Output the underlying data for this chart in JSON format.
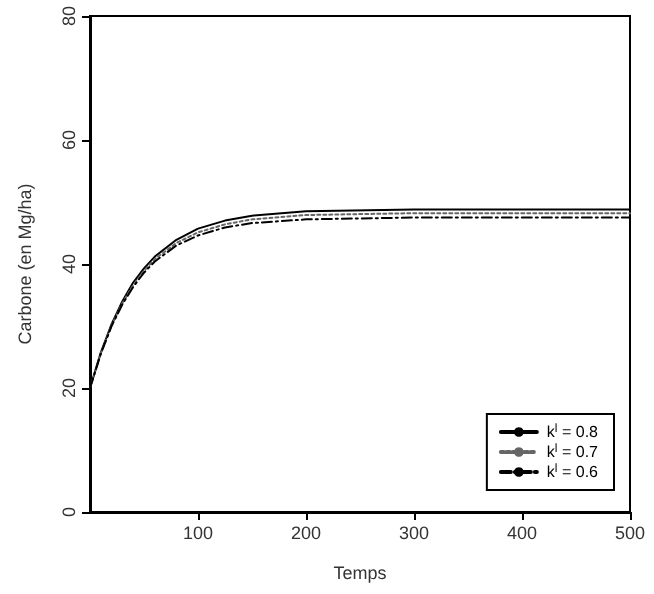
{
  "chart_data": {
    "type": "line",
    "xlabel": "Temps",
    "ylabel": "Carbone (en Mg/ha)",
    "x": [
      0,
      10,
      20,
      30,
      40,
      50,
      60,
      80,
      100,
      125,
      150,
      200,
      300,
      400,
      500
    ],
    "series": [
      {
        "name": "k$^{l}$ = 0.8",
        "color": "#000000",
        "line_style": "solid",
        "values": [
          20,
          25.7,
          30.3,
          34.0,
          37.0,
          39.3,
          41.2,
          43.9,
          45.7,
          47.0,
          47.8,
          48.5,
          48.8,
          48.8,
          48.8
        ]
      },
      {
        "name": "k$^{l}$ = 0.7",
        "color": "#666666",
        "line_style": "dotted",
        "values": [
          20,
          25.6,
          30.1,
          33.7,
          36.6,
          38.9,
          40.8,
          43.4,
          45.1,
          46.4,
          47.2,
          47.9,
          48.2,
          48.2,
          48.2
        ]
      },
      {
        "name": "k$^{l}$ = 0.6",
        "color": "#000000",
        "line_style": "dashed",
        "values": [
          20,
          25.5,
          30.0,
          33.5,
          36.3,
          38.6,
          40.4,
          43.0,
          44.6,
          45.9,
          46.6,
          47.2,
          47.5,
          47.5,
          47.5
        ]
      }
    ],
    "xlim": [
      0,
      500
    ],
    "xticks": [
      100,
      200,
      300,
      400,
      500
    ],
    "ylim": [
      0,
      80
    ],
    "yticks": [
      0,
      20,
      40,
      60,
      80
    ],
    "grid": false,
    "legend": "bottom right",
    "marker": "none"
  }
}
